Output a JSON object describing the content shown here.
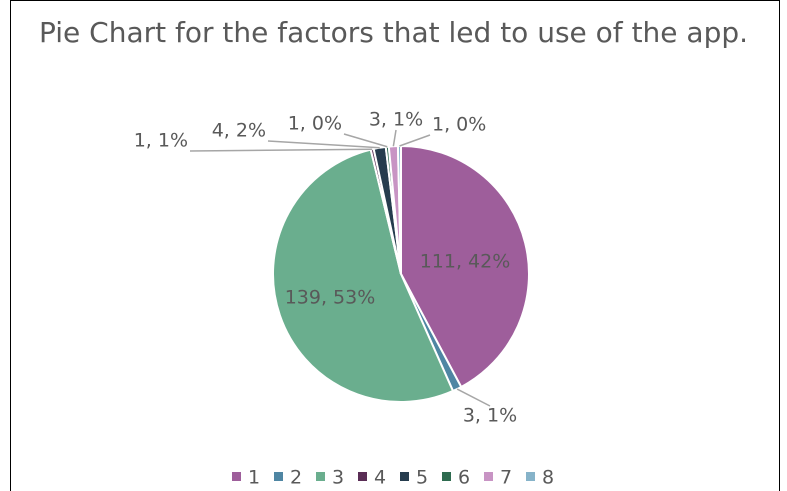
{
  "chart_data": {
    "type": "pie",
    "title": "Pie Chart for the factors that led to use of the app.",
    "categories": [
      "1",
      "2",
      "3",
      "4",
      "5",
      "6",
      "7",
      "8"
    ],
    "values": [
      111,
      3,
      139,
      1,
      4,
      1,
      3,
      1
    ],
    "value_labels": [
      "111, 42%",
      "3, 1%",
      "139, 53%",
      "1, 1%",
      "4, 2%",
      "1, 0%",
      "3, 1%",
      "1, 0%"
    ],
    "colors": [
      "#9e5e9b",
      "#4f86a3",
      "#6aae8e",
      "#5a2d55",
      "#263c4e",
      "#2e6b4f",
      "#c894c4",
      "#86b3c9"
    ],
    "legend": "bottom"
  }
}
